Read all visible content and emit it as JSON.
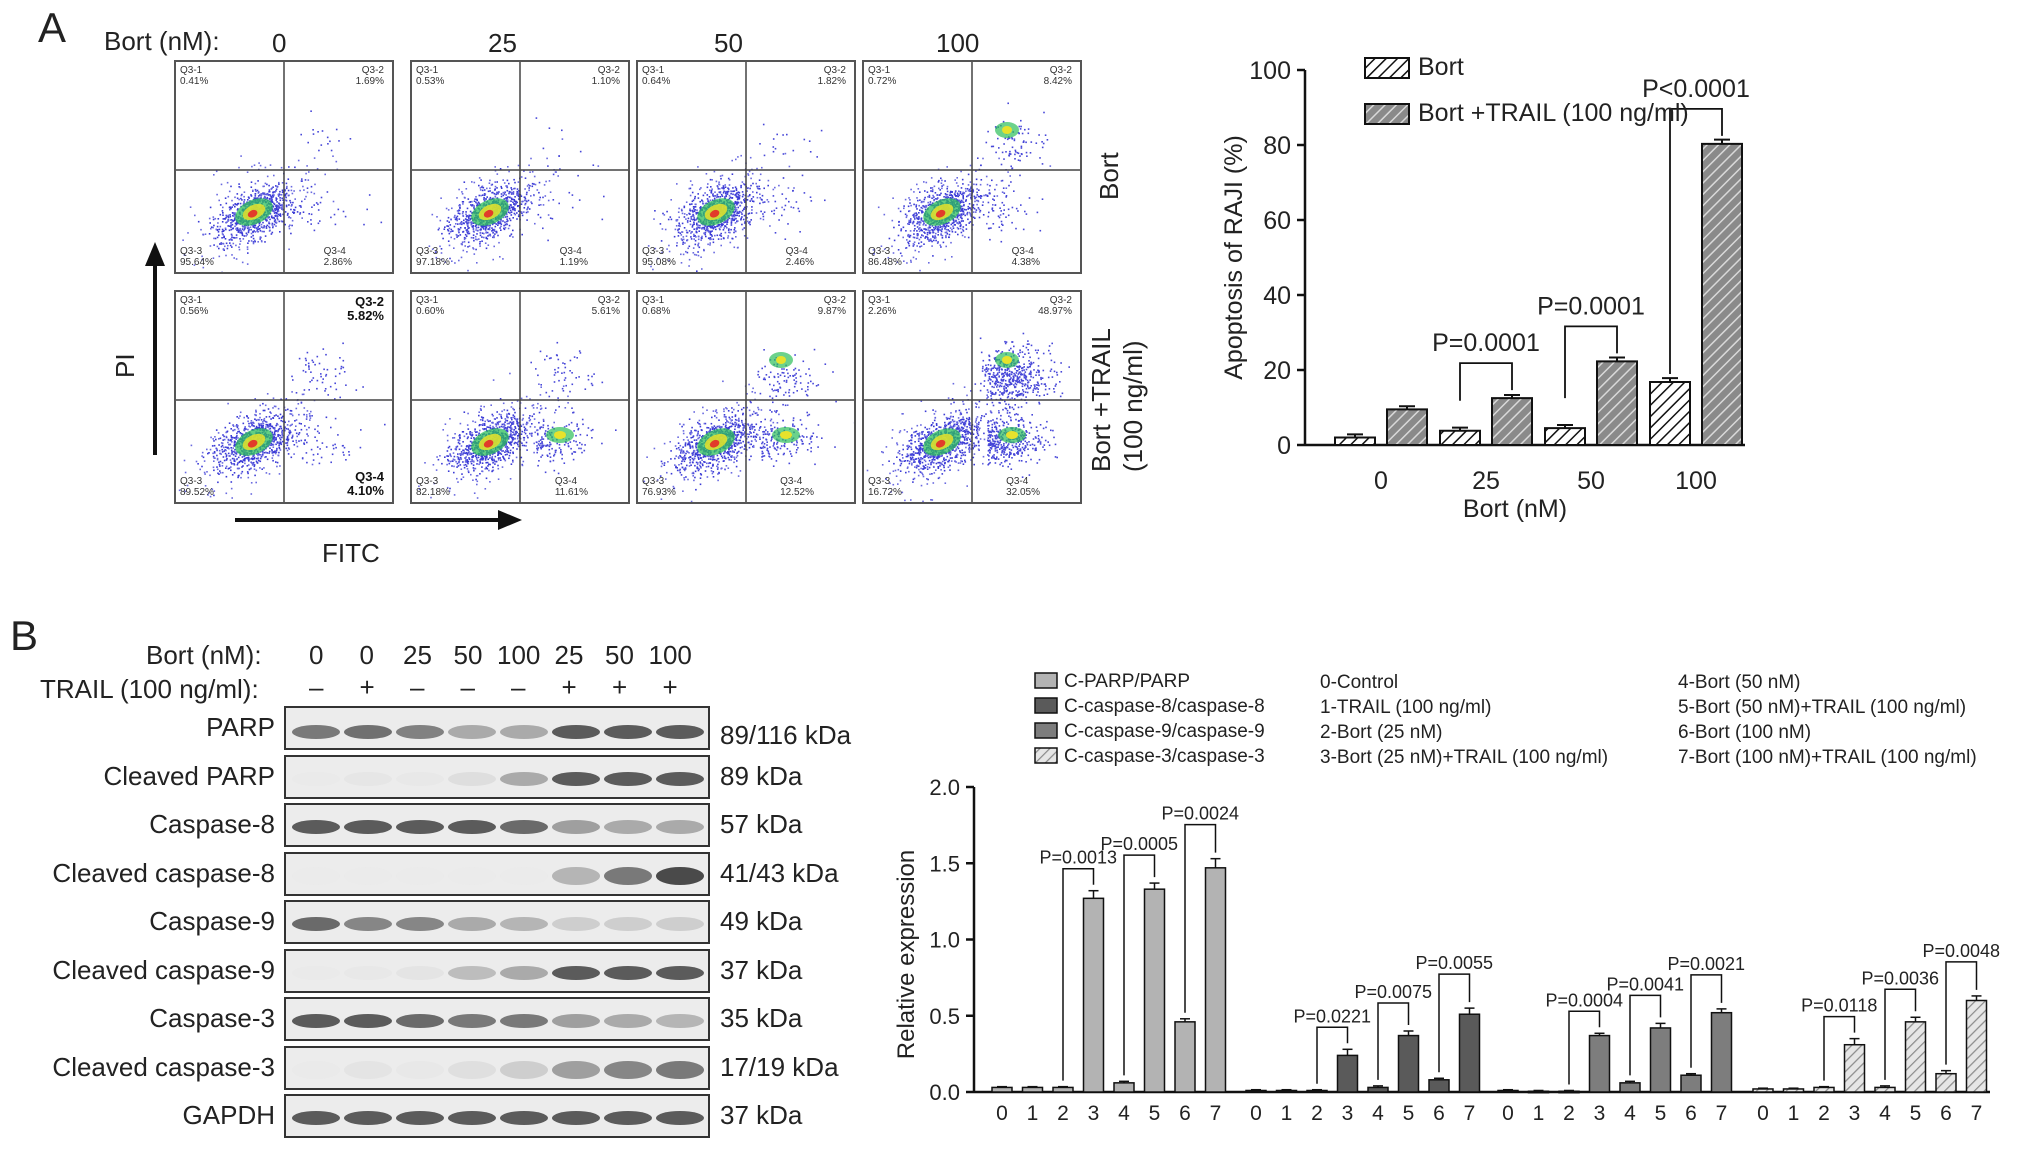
{
  "panelA": {
    "letter": "A",
    "bort_header": "Bort (nM):",
    "doses": [
      "0",
      "25",
      "50",
      "100"
    ],
    "row_labels": [
      "Bort",
      "Bort +TRAIL",
      "(100 ng/ml)"
    ],
    "y_axis": "PI",
    "x_axis": "FITC",
    "quadrants": [
      {
        "q1": "Q3-1",
        "q1v": "0.41%",
        "q2": "Q3-2",
        "q2v": "1.69%",
        "q3": "Q3-3",
        "q3v": "95.64%",
        "q4": "Q3-4",
        "q4v": "2.86%"
      },
      {
        "q1": "Q3-1",
        "q1v": "0.53%",
        "q2": "Q3-2",
        "q2v": "1.10%",
        "q3": "Q3-3",
        "q3v": "97.18%",
        "q4": "Q3-4",
        "q4v": "1.19%"
      },
      {
        "q1": "Q3-1",
        "q1v": "0.64%",
        "q2": "Q3-2",
        "q2v": "1.82%",
        "q3": "Q3-3",
        "q3v": "95.08%",
        "q4": "Q3-4",
        "q4v": "2.46%"
      },
      {
        "q1": "Q3-1",
        "q1v": "0.72%",
        "q2": "Q3-2",
        "q2v": "8.42%",
        "q3": "Q3-3",
        "q3v": "86.48%",
        "q4": "Q3-4",
        "q4v": "4.38%"
      },
      {
        "q1": "Q3-1",
        "q1v": "0.56%",
        "q2": "Q3-2",
        "q2v": "5.82%",
        "q3": "Q3-3",
        "q3v": "89.52%",
        "q4": "Q3-4",
        "q4v": "4.10%"
      },
      {
        "q1": "Q3-1",
        "q1v": "0.60%",
        "q2": "Q3-2",
        "q2v": "5.61%",
        "q3": "Q3-3",
        "q3v": "82.18%",
        "q4": "Q3-4",
        "q4v": "11.61%"
      },
      {
        "q1": "Q3-1",
        "q1v": "0.68%",
        "q2": "Q3-2",
        "q2v": "9.87%",
        "q3": "Q3-3",
        "q3v": "76.93%",
        "q4": "Q3-4",
        "q4v": "12.52%"
      },
      {
        "q1": "Q3-1",
        "q1v": "2.26%",
        "q2": "Q3-2",
        "q2v": "48.97%",
        "q3": "Q3-3",
        "q3v": "16.72%",
        "q4": "Q3-4",
        "q4v": "32.05%"
      }
    ]
  },
  "panelB": {
    "letter": "B",
    "bort_label": "Bort (nM):",
    "trail_label": "TRAIL (100 ng/ml):",
    "bort_values": [
      "0",
      "0",
      "25",
      "50",
      "100",
      "25",
      "50",
      "100"
    ],
    "trail_values": [
      "–",
      "+",
      "–",
      "–",
      "–",
      "+",
      "+",
      "+"
    ],
    "proteins": [
      {
        "name": "PARP",
        "kda": "89/116 kDa"
      },
      {
        "name": "Cleaved PARP",
        "kda": "89 kDa"
      },
      {
        "name": "Caspase-8",
        "kda": "57 kDa"
      },
      {
        "name": "Cleaved caspase-8",
        "kda": "41/43 kDa"
      },
      {
        "name": "Caspase-9",
        "kda": "49 kDa"
      },
      {
        "name": "Cleaved caspase-9",
        "kda": "37 kDa"
      },
      {
        "name": "Caspase-3",
        "kda": "35 kDa"
      },
      {
        "name": "Cleaved caspase-3",
        "kda": "17/19 kDa"
      },
      {
        "name": "GAPDH",
        "kda": "37 kDa"
      }
    ],
    "band_intensity": [
      [
        0.75,
        0.78,
        0.72,
        0.55,
        0.55,
        0.85,
        0.85,
        0.85
      ],
      [
        0.05,
        0.12,
        0.08,
        0.22,
        0.55,
        0.85,
        0.85,
        0.85
      ],
      [
        0.85,
        0.85,
        0.85,
        0.85,
        0.8,
        0.6,
        0.55,
        0.55
      ],
      [
        0.02,
        0.02,
        0.02,
        0.02,
        0.02,
        0.5,
        0.75,
        0.9
      ],
      [
        0.8,
        0.7,
        0.7,
        0.55,
        0.5,
        0.35,
        0.35,
        0.35
      ],
      [
        0.05,
        0.1,
        0.15,
        0.45,
        0.55,
        0.85,
        0.85,
        0.85
      ],
      [
        0.85,
        0.85,
        0.8,
        0.75,
        0.75,
        0.6,
        0.55,
        0.5
      ],
      [
        0.05,
        0.15,
        0.1,
        0.2,
        0.35,
        0.6,
        0.7,
        0.75
      ],
      [
        0.85,
        0.85,
        0.85,
        0.85,
        0.85,
        0.85,
        0.85,
        0.85
      ]
    ]
  },
  "chart_data": [
    {
      "type": "bar",
      "ylabel": "Apoptosis of RAJI (%)",
      "xlabel": "Bort (nM)",
      "categories": [
        "0",
        "25",
        "50",
        "100"
      ],
      "ylim": [
        0,
        100
      ],
      "yticks": [
        "0",
        "20",
        "40",
        "60",
        "80",
        "100"
      ],
      "legend_position": "top-left",
      "series": [
        {
          "name": "Bort",
          "values": [
            2.0,
            3.8,
            4.5,
            16.8
          ],
          "errors": [
            0.3,
            0.3,
            0.3,
            0.5
          ]
        },
        {
          "name": "Bort +TRAIL (100 ng/ml)",
          "values": [
            9.5,
            12.5,
            22.3,
            80.3
          ],
          "errors": [
            0.3,
            0.3,
            0.5,
            0.6
          ]
        }
      ],
      "annotations": [
        {
          "category": "25",
          "text": "P=0.0001"
        },
        {
          "category": "50",
          "text": "P=0.0001"
        },
        {
          "category": "100",
          "text": "P<0.0001"
        }
      ]
    },
    {
      "type": "bar",
      "ylabel": "Relative expression",
      "ylim": [
        0,
        2.0
      ],
      "yticks": [
        "0.0",
        "0.5",
        "1.0",
        "1.5",
        "2.0"
      ],
      "categories": [
        "0",
        "1",
        "2",
        "3",
        "4",
        "5",
        "6",
        "7"
      ],
      "legend_position": "top",
      "series": [
        {
          "name": "C-PARP/PARP",
          "values": [
            0.03,
            0.03,
            0.03,
            1.27,
            0.06,
            1.33,
            0.46,
            1.47
          ],
          "errors": [
            0.005,
            0.005,
            0.005,
            0.05,
            0.01,
            0.04,
            0.02,
            0.06
          ],
          "pvalues": [
            "P=0.0013",
            "P=0.0005",
            "P=0.0024"
          ]
        },
        {
          "name": "C-caspase-8/caspase-8",
          "values": [
            0.01,
            0.01,
            0.01,
            0.24,
            0.03,
            0.37,
            0.08,
            0.51
          ],
          "errors": [
            0.005,
            0.005,
            0.005,
            0.04,
            0.01,
            0.03,
            0.01,
            0.04
          ],
          "pvalues": [
            "P=0.0221",
            "P=0.0075",
            "P=0.0055"
          ]
        },
        {
          "name": "C-caspase-9/caspase-9",
          "values": [
            0.01,
            0.005,
            0.005,
            0.37,
            0.06,
            0.42,
            0.11,
            0.52
          ],
          "errors": [
            0.005,
            0.005,
            0.005,
            0.015,
            0.01,
            0.03,
            0.01,
            0.025
          ],
          "pvalues": [
            "P=0.0004",
            "P=0.0041",
            "P=0.0021"
          ]
        },
        {
          "name": "C-caspase-3/caspase-3",
          "values": [
            0.02,
            0.02,
            0.03,
            0.31,
            0.03,
            0.46,
            0.12,
            0.6
          ],
          "errors": [
            0.005,
            0.005,
            0.005,
            0.04,
            0.01,
            0.03,
            0.02,
            0.03
          ],
          "pvalues": [
            "P=0.0118",
            "P=0.0036",
            "P=0.0048"
          ]
        }
      ],
      "group_labels": [
        "0-Control",
        "1-TRAIL (100 ng/ml)",
        "2-Bort (25 nM)",
        "3-Bort (25 nM)+TRAIL (100 ng/ml)",
        "4-Bort (50 nM)",
        "5-Bort (50 nM)+TRAIL (100 ng/ml)",
        "6-Bort (100 nM)",
        "7-Bort (100 nM)+TRAIL (100 ng/ml)"
      ]
    }
  ]
}
